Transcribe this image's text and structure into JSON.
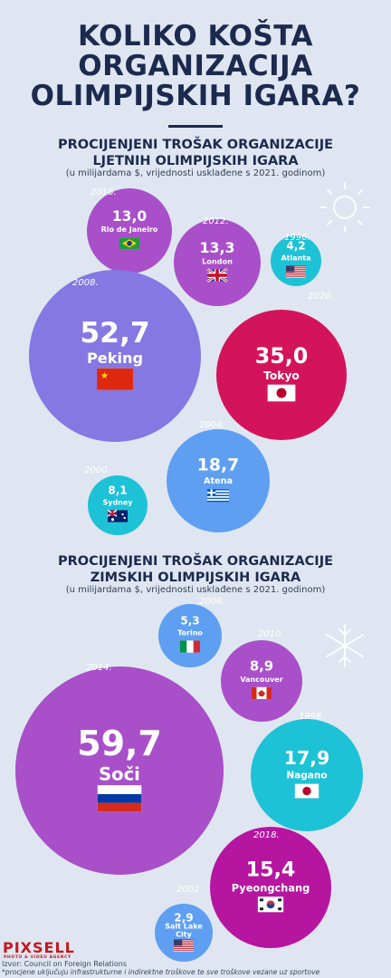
{
  "header": {
    "title_lines": [
      "KOLIKO KOŠTA",
      "ORGANIZACIJA",
      "OLIMPIJSKIH IGARA?"
    ]
  },
  "summer": {
    "title_lines": [
      "PROCIJENJENI TROŠAK ORGANIZACIJE",
      "LJETNIH OLIMPIJSKIH IGARA"
    ],
    "subtitle": "(u milijardama $, vrijednosti usklađene s 2021. godinom)"
  },
  "winter": {
    "title_lines": [
      "PROCIJENJENI TROŠAK ORGANIZACIJE",
      "ZIMSKIH OLIMPIJSKIH IGARA"
    ],
    "subtitle": "(u milijardama $, vrijednosti usklađene s 2021. godinom)"
  },
  "chart_data": [
    {
      "type": "bubble",
      "title": "PROCIJENJENI TROŠAK ORGANIZACIJE LJETNIH OLIMPIJSKIH IGARA",
      "unit": "u milijardama $, vrijednosti usklađene s 2021. godinom",
      "series": [
        {
          "city": "Rio de Janeiro",
          "year": "2016.",
          "value": 13.0,
          "label": "13,0",
          "flag": "brazil-flag",
          "color": "#a84fc9"
        },
        {
          "city": "London",
          "year": "2012.",
          "value": 13.3,
          "label": "13,3",
          "flag": "uk-flag",
          "color": "#a84fc9"
        },
        {
          "city": "Atlanta",
          "year": "1996.",
          "value": 4.2,
          "label": "4,2",
          "flag": "usa-flag",
          "color": "#1ec2d6"
        },
        {
          "city": "Peking",
          "year": "2008.",
          "value": 52.7,
          "label": "52,7",
          "flag": "china-flag",
          "color": "#8578e3"
        },
        {
          "city": "Tokyo",
          "year": "2020.",
          "value": 35.0,
          "label": "35,0",
          "flag": "japan-flag",
          "color": "#d3145a"
        },
        {
          "city": "Atena",
          "year": "2004.",
          "value": 18.7,
          "label": "18,7",
          "flag": "greece-flag",
          "color": "#5e9ff2"
        },
        {
          "city": "Sydney",
          "year": "2000.",
          "value": 8.1,
          "label": "8,1",
          "flag": "australia-flag",
          "color": "#1ec2d6"
        }
      ]
    },
    {
      "type": "bubble",
      "title": "PROCIJENJENI TROŠAK ORGANIZACIJE ZIMSKIH OLIMPIJSKIH IGARA",
      "unit": "u milijardama $, vrijednosti usklađene s 2021. godinom",
      "series": [
        {
          "city": "Torino",
          "year": "2006.",
          "value": 5.3,
          "label": "5,3",
          "flag": "italy-flag",
          "color": "#5e9ff2"
        },
        {
          "city": "Vancouver",
          "year": "2010.",
          "value": 8.9,
          "label": "8,9",
          "flag": "canada-flag",
          "color": "#a84fc9"
        },
        {
          "city": "Soči",
          "year": "2014.",
          "value": 59.7,
          "label": "59,7",
          "flag": "russia-flag",
          "color": "#a84fc9"
        },
        {
          "city": "Nagano",
          "year": "1998.",
          "value": 17.9,
          "label": "17,9",
          "flag": "japan-flag",
          "color": "#1ec2d6"
        },
        {
          "city": "Pyeongchang",
          "year": "2018.",
          "value": 15.4,
          "label": "15,4",
          "flag": "korea-flag",
          "color": "#b615a0"
        },
        {
          "city": "Salt Lake City",
          "year": "2002.",
          "value": 2.9,
          "label": "2,9",
          "flag": "usa-flag",
          "color": "#5e9ff2"
        }
      ]
    }
  ],
  "footer": {
    "logo": "PIXSELL",
    "logo_sub": "PHOTO & VIDEO AGENCY",
    "source": "Izvor: Council on Foreign Relations",
    "note": "*procjene uključuju infrastrukturne i indirektne troškove te sve troškove vezane uz sportove"
  },
  "icons": [
    "sun-icon",
    "snowflake-icon"
  ]
}
